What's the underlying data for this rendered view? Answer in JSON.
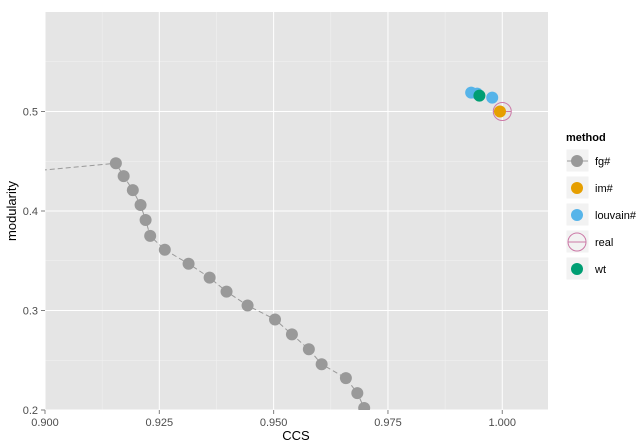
{
  "chart_data": {
    "type": "scatter",
    "xlabel": "CCS",
    "ylabel": "modularity",
    "xlim": [
      0.9,
      1.01
    ],
    "ylim": [
      0.2,
      0.6
    ],
    "x_ticks": [
      "0.900",
      "0.925",
      "0.950",
      "0.975",
      "1.000"
    ],
    "y_ticks": [
      "0.2",
      "0.3",
      "0.4",
      "0.5"
    ],
    "grid": true,
    "legend": {
      "title": "method",
      "placement": "right",
      "entries": [
        "fg#",
        "im#",
        "louvain#",
        "real",
        "wt"
      ]
    },
    "series": [
      {
        "name": "fg#",
        "color": "#999999",
        "line": "dashed",
        "points": [
          {
            "x": 0.8993,
            "y": 0.441
          },
          {
            "x": 0.9155,
            "y": 0.448
          },
          {
            "x": 0.9172,
            "y": 0.435
          },
          {
            "x": 0.9192,
            "y": 0.421
          },
          {
            "x": 0.9209,
            "y": 0.406
          },
          {
            "x": 0.922,
            "y": 0.391
          },
          {
            "x": 0.923,
            "y": 0.375
          },
          {
            "x": 0.9262,
            "y": 0.361
          },
          {
            "x": 0.9314,
            "y": 0.347
          },
          {
            "x": 0.936,
            "y": 0.333
          },
          {
            "x": 0.9397,
            "y": 0.319
          },
          {
            "x": 0.9443,
            "y": 0.305
          },
          {
            "x": 0.9503,
            "y": 0.291
          },
          {
            "x": 0.954,
            "y": 0.276
          },
          {
            "x": 0.9577,
            "y": 0.261
          },
          {
            "x": 0.9605,
            "y": 0.246
          },
          {
            "x": 0.9658,
            "y": 0.232
          },
          {
            "x": 0.9683,
            "y": 0.217
          },
          {
            "x": 0.9698,
            "y": 0.202
          }
        ]
      },
      {
        "name": "im#",
        "color": "#E69F00",
        "line": "none",
        "points": [
          {
            "x": 0.9995,
            "y": 0.5
          }
        ]
      },
      {
        "name": "louvain#",
        "color": "#56B4E9",
        "line": "none",
        "points": [
          {
            "x": 0.9932,
            "y": 0.519
          },
          {
            "x": 0.9945,
            "y": 0.518
          },
          {
            "x": 0.9978,
            "y": 0.514
          }
        ]
      },
      {
        "name": "real",
        "color": "#CC79A7",
        "line": "none",
        "marker": "open-circle-cross",
        "points": [
          {
            "x": 1.0,
            "y": 0.5
          }
        ]
      },
      {
        "name": "wt",
        "color": "#009E73",
        "line": "none",
        "points": [
          {
            "x": 0.995,
            "y": 0.516
          }
        ]
      }
    ]
  }
}
